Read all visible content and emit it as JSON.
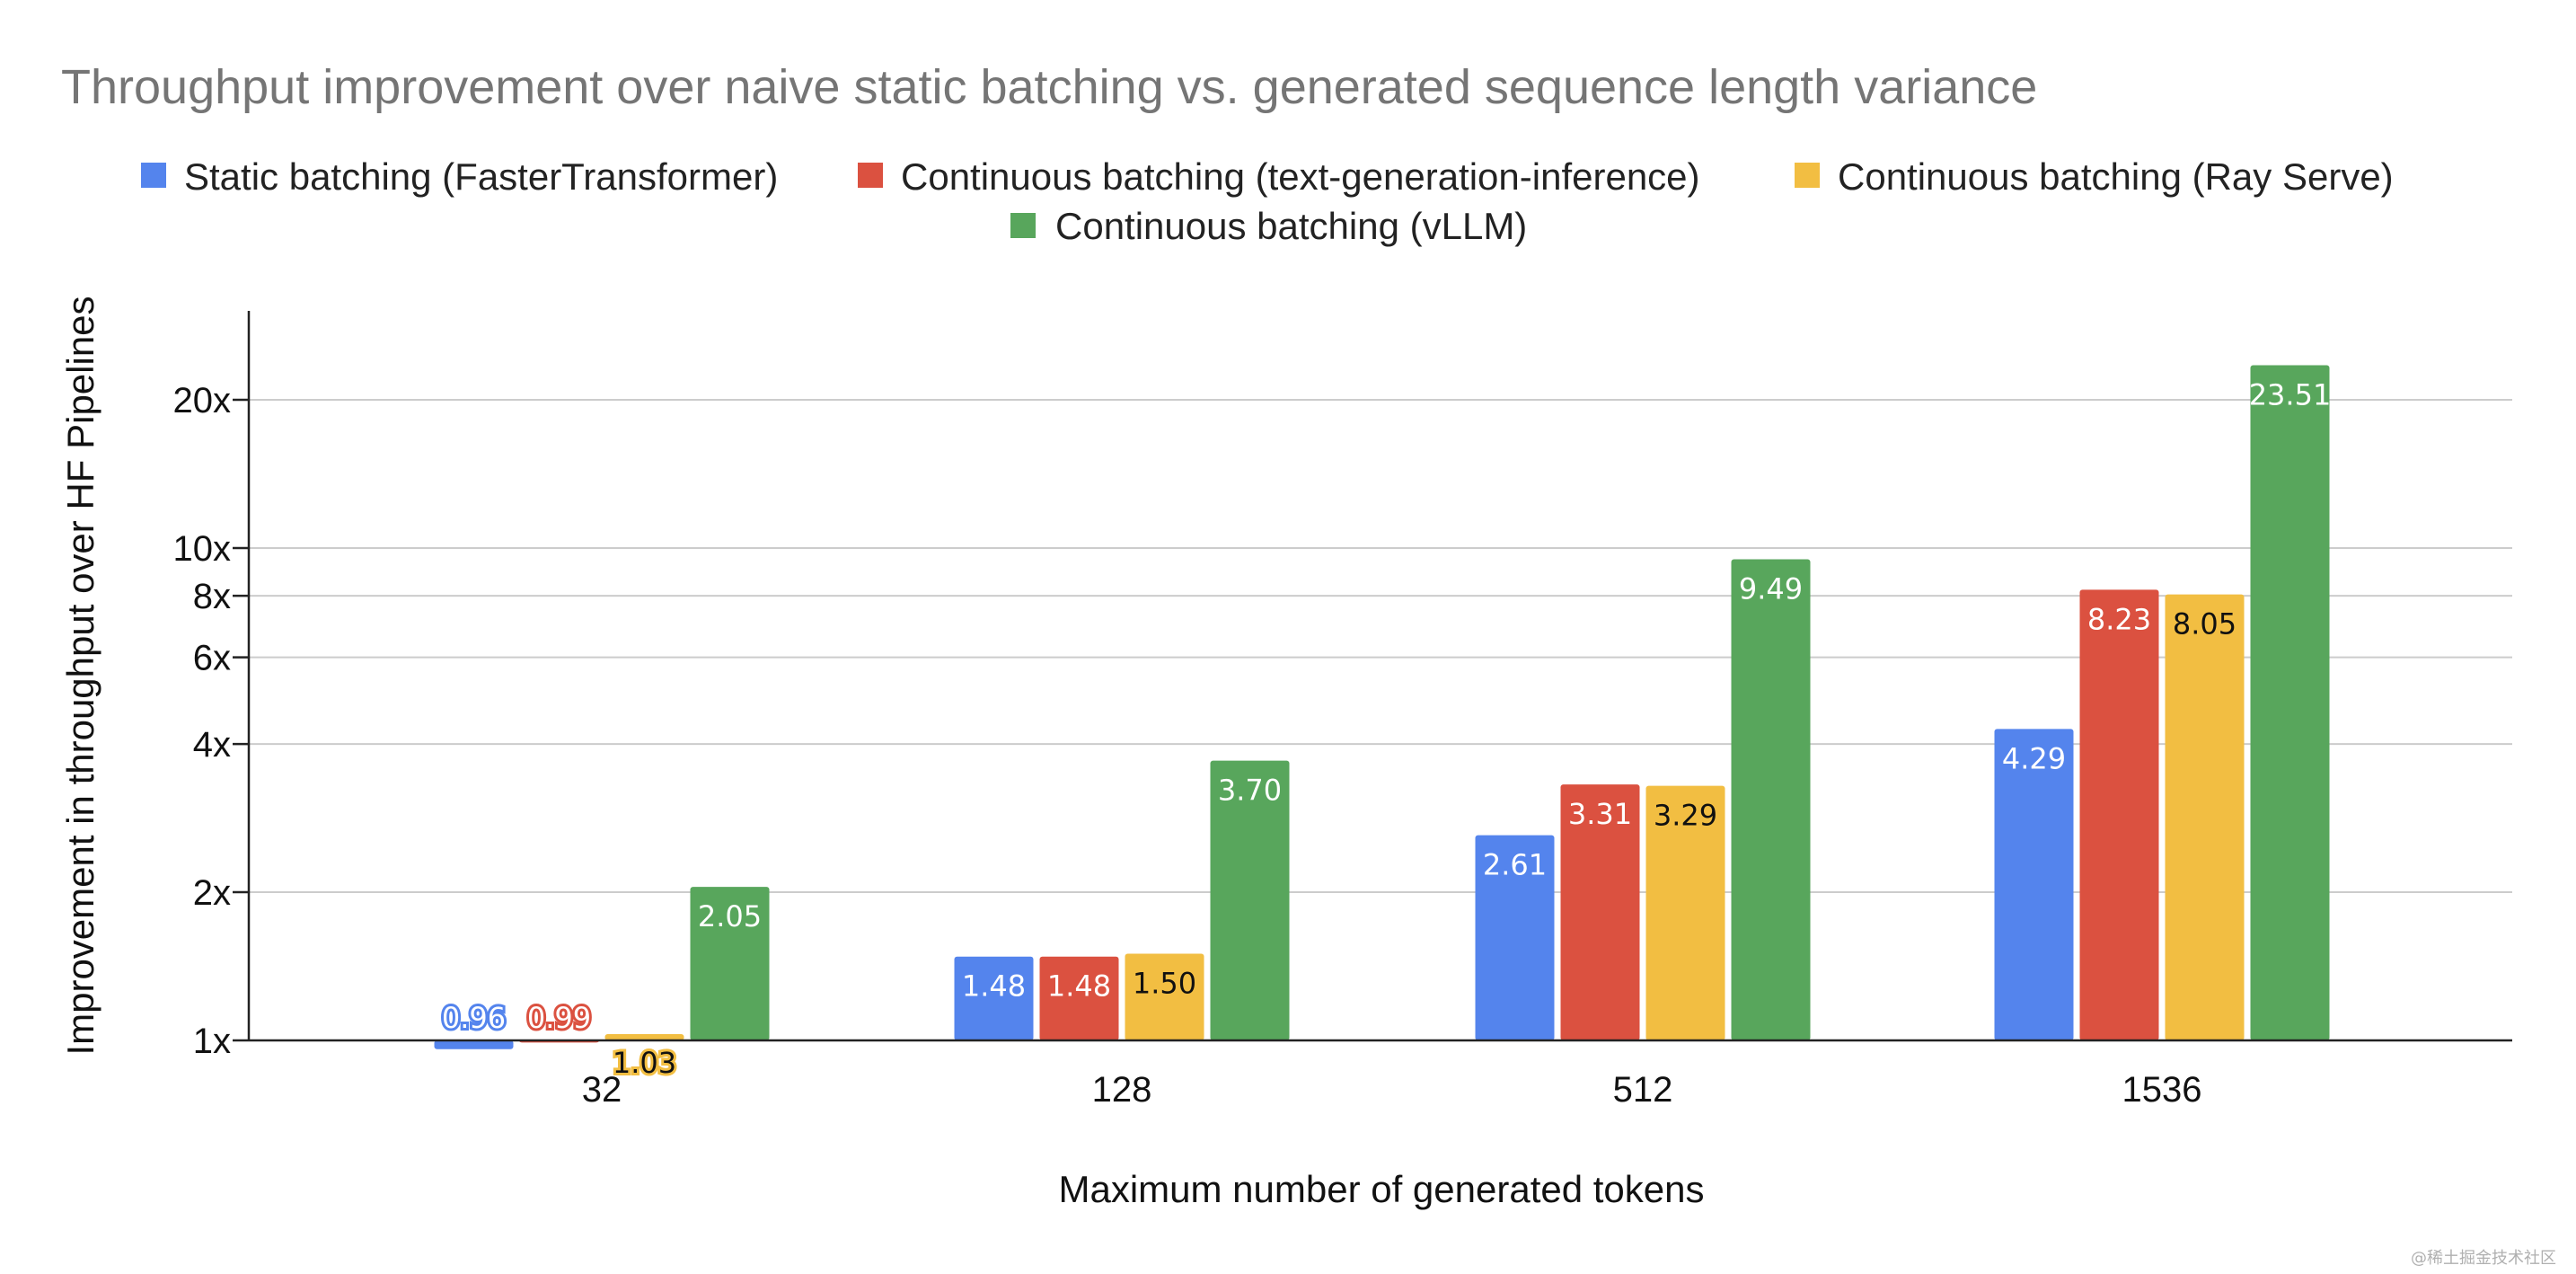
{
  "chart_data": {
    "type": "bar",
    "title": "Throughput improvement over naive static batching vs. generated sequence length variance",
    "xlabel": "Maximum number of generated tokens",
    "ylabel": "Improvement in throughput over HF Pipelines",
    "categories": [
      "32",
      "128",
      "512",
      "1536"
    ],
    "y_scale": "log",
    "ylim": [
      1,
      29
    ],
    "y_ticks": [
      {
        "value": 1,
        "label": "1x"
      },
      {
        "value": 2,
        "label": "2x"
      },
      {
        "value": 4,
        "label": "4x"
      },
      {
        "value": 6,
        "label": "6x"
      },
      {
        "value": 8,
        "label": "8x"
      },
      {
        "value": 10,
        "label": "10x"
      },
      {
        "value": 20,
        "label": "20x"
      }
    ],
    "grid": true,
    "legend_position": "top",
    "series": [
      {
        "name": "Static batching (FasterTransformer)",
        "color": "#5484ED",
        "values": [
          0.96,
          1.48,
          2.61,
          4.29
        ],
        "labels": [
          "0.96",
          "1.48",
          "2.61",
          "4.29"
        ]
      },
      {
        "name": "Continuous batching (text-generation-inference)",
        "color": "#DB5140",
        "values": [
          0.99,
          1.48,
          3.31,
          8.23
        ],
        "labels": [
          "0.99",
          "1.48",
          "3.31",
          "8.23"
        ]
      },
      {
        "name": "Continuous batching (Ray Serve)",
        "color": "#F2BE42",
        "values": [
          1.03,
          1.5,
          3.29,
          8.05
        ],
        "labels": [
          "1.03",
          "1.50",
          "3.29",
          "8.05"
        ]
      },
      {
        "name": "Continuous batching (vLLM)",
        "color": "#58A65C",
        "values": [
          2.05,
          3.7,
          9.49,
          23.51
        ],
        "labels": [
          "2.05",
          "3.70",
          "9.49",
          "23.51"
        ]
      }
    ]
  },
  "watermark": "@稀土掘金技术社区"
}
